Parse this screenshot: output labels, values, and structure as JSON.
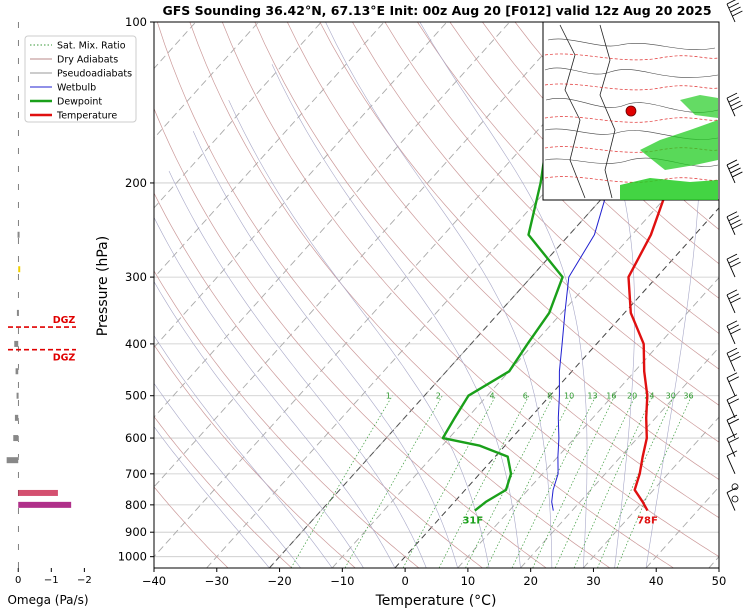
{
  "chart_data": {
    "type": "line",
    "title": "GFS Sounding 36.42°N, 67.13°E Init: 00z Aug 20 [F012] valid 12z Aug 20 2025",
    "xlabel": "Temperature (°C)",
    "ylabel": "Pressure (hPa)",
    "xlim": [
      -40,
      50
    ],
    "ylim": [
      1050,
      100
    ],
    "y_scale": "log",
    "x_ticks": [
      -40,
      -30,
      -20,
      -10,
      0,
      10,
      20,
      30,
      40,
      50
    ],
    "x_tick_labels": [
      "−40",
      "−30",
      "−20",
      "−10",
      "0",
      "10",
      "20",
      "30",
      "40",
      "50"
    ],
    "y_ticks": [
      100,
      200,
      300,
      400,
      500,
      600,
      700,
      800,
      900,
      1000
    ],
    "y_tick_labels": [
      "100",
      "200",
      "300",
      "400",
      "500",
      "600",
      "700",
      "800",
      "900",
      "1000"
    ],
    "legend": {
      "position": "top-left",
      "entries": [
        {
          "label": "Sat. Mix. Ratio",
          "color": "#3a9a3a",
          "style": "dotted"
        },
        {
          "label": "Dry Adiabats",
          "color": "#b88a8a",
          "style": "solid"
        },
        {
          "label": "Pseudoadiabats",
          "color": "#9a9a9a",
          "style": "solid"
        },
        {
          "label": "Wetbulb",
          "color": "#2020d0",
          "style": "solid"
        },
        {
          "label": "Dewpoint",
          "color": "#1aa01a",
          "style": "solid"
        },
        {
          "label": "Temperature",
          "color": "#e01010",
          "style": "solid"
        }
      ]
    },
    "series": [
      {
        "name": "Temperature",
        "color": "#e01010",
        "points": [
          [
            32,
            820
          ],
          [
            30,
            790
          ],
          [
            27,
            750
          ],
          [
            25.5,
            700
          ],
          [
            23.5,
            650
          ],
          [
            21.5,
            600
          ],
          [
            18.5,
            550
          ],
          [
            15.5,
            500
          ],
          [
            11.5,
            450
          ],
          [
            7.5,
            400
          ],
          [
            1,
            350
          ],
          [
            -4.5,
            300
          ],
          [
            -7,
            250
          ],
          [
            -11.5,
            200
          ],
          [
            -21,
            150
          ],
          [
            -30,
            100
          ]
        ]
      },
      {
        "name": "Dewpoint",
        "color": "#1aa01a",
        "points": [
          [
            4.5,
            820
          ],
          [
            5,
            790
          ],
          [
            6.5,
            750
          ],
          [
            5,
            700
          ],
          [
            2,
            650
          ],
          [
            -4,
            620
          ],
          [
            -11,
            600
          ],
          [
            -12,
            550
          ],
          [
            -13,
            500
          ],
          [
            -10,
            450
          ],
          [
            -11,
            400
          ],
          [
            -12,
            350
          ],
          [
            -15,
            300
          ],
          [
            -26.5,
            250
          ],
          [
            -32,
            200
          ],
          [
            -40,
            150
          ],
          [
            -52,
            100
          ]
        ]
      },
      {
        "name": "Wetbulb",
        "color": "#2020d0",
        "points": [
          [
            17,
            820
          ],
          [
            15.5,
            790
          ],
          [
            14,
            750
          ],
          [
            12.5,
            700
          ],
          [
            10,
            650
          ],
          [
            7.5,
            600
          ],
          [
            4.5,
            550
          ],
          [
            1.5,
            500
          ],
          [
            -2,
            450
          ],
          [
            -5.5,
            400
          ],
          [
            -9.5,
            350
          ],
          [
            -14,
            300
          ],
          [
            -16,
            250
          ],
          [
            -21,
            200
          ],
          [
            -30,
            150
          ]
        ]
      }
    ],
    "mixing_ratio_labels": [
      "1",
      "2",
      "4",
      "6",
      "8",
      "10",
      "13",
      "16",
      "20",
      "24",
      "30",
      "36"
    ],
    "surface_labels": {
      "dewpoint": "31F",
      "temperature": "78F"
    },
    "omega": {
      "xlabel": "Omega (Pa/s)",
      "xlim": [
        0.4,
        -2.2
      ],
      "x_ticks": [
        0,
        -1,
        -2
      ],
      "x_tick_labels": [
        "0",
        "−1",
        "−2"
      ],
      "dgz_label": "DGZ",
      "dgz_levels": [
        372,
        410
      ],
      "bars": [
        {
          "p": 800,
          "value": -1.6,
          "color": "#b0308a"
        },
        {
          "p": 760,
          "value": -1.2,
          "color": "#d45070"
        },
        {
          "p": 660,
          "value": 0.35,
          "color": "#888888"
        },
        {
          "p": 600,
          "value": 0.15,
          "color": "#888888"
        },
        {
          "p": 550,
          "value": 0.1,
          "color": "#888888"
        },
        {
          "p": 500,
          "value": 0.05,
          "color": "#888888"
        },
        {
          "p": 450,
          "value": 0.08,
          "color": "#888888"
        },
        {
          "p": 400,
          "value": 0.12,
          "color": "#888888"
        },
        {
          "p": 350,
          "value": 0.04,
          "color": "#888888"
        },
        {
          "p": 290,
          "value": -0.05,
          "color": "#f0d000"
        },
        {
          "p": 250,
          "value": 0.02,
          "color": "#888888"
        }
      ]
    },
    "wind_barbs": {
      "levels": [
        820,
        780,
        740,
        700,
        650,
        600,
        550,
        500,
        450,
        400,
        350,
        300,
        250,
        200,
        150,
        100
      ]
    }
  }
}
